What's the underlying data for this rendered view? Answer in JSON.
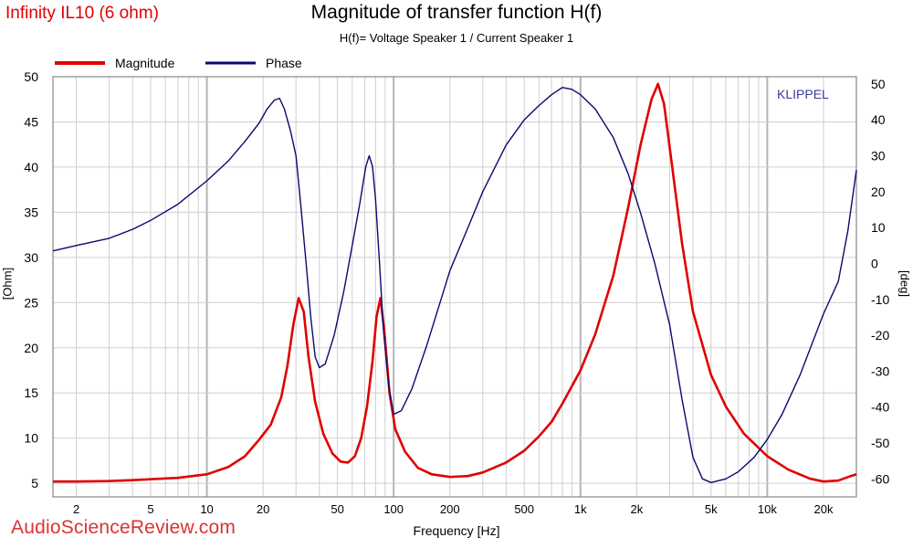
{
  "header": {
    "brand": "Infinity IL10 (6 ohm)",
    "watermark": "AudioScienceReview.com",
    "logo_text": "KLIPPEL"
  },
  "chart_data": {
    "type": "line",
    "title": "Magnitude of transfer function H(f)",
    "subtitle": "H(f)= Voltage Speaker 1 / Current Speaker 1",
    "xlabel": "Frequency [Hz]",
    "ylabel_left": "[Ohm]",
    "ylabel_right": "[deg]",
    "x_scale": "log",
    "xlim": [
      1.5,
      30000
    ],
    "ylim_left": [
      3.5,
      50
    ],
    "ylim_right": [
      -65,
      52
    ],
    "x_ticks": [
      {
        "value": 2,
        "label": "2"
      },
      {
        "value": 5,
        "label": "5"
      },
      {
        "value": 10,
        "label": "10"
      },
      {
        "value": 20,
        "label": "20"
      },
      {
        "value": 50,
        "label": "50"
      },
      {
        "value": 100,
        "label": "100"
      },
      {
        "value": 200,
        "label": "200"
      },
      {
        "value": 500,
        "label": "500"
      },
      {
        "value": 1000,
        "label": "1k"
      },
      {
        "value": 2000,
        "label": "2k"
      },
      {
        "value": 5000,
        "label": "5k"
      },
      {
        "value": 10000,
        "label": "10k"
      },
      {
        "value": 20000,
        "label": "20k"
      }
    ],
    "y_left_ticks": [
      5,
      10,
      15,
      20,
      25,
      30,
      35,
      40,
      45,
      50
    ],
    "y_right_ticks": [
      -60,
      -50,
      -40,
      -30,
      -20,
      -10,
      0,
      10,
      20,
      30,
      40,
      50
    ],
    "grid": true,
    "legend_position": "top-left",
    "series": [
      {
        "name": "Magnitude",
        "axis": "left",
        "color": "#e00000",
        "points": [
          [
            1.5,
            5.2
          ],
          [
            2,
            5.2
          ],
          [
            3,
            5.25
          ],
          [
            4,
            5.35
          ],
          [
            5,
            5.45
          ],
          [
            7,
            5.6
          ],
          [
            10,
            6.0
          ],
          [
            13,
            6.8
          ],
          [
            16,
            8.0
          ],
          [
            19,
            9.8
          ],
          [
            22,
            11.5
          ],
          [
            25,
            14.5
          ],
          [
            27,
            18.0
          ],
          [
            29,
            22.5
          ],
          [
            31,
            25.5
          ],
          [
            33,
            24.0
          ],
          [
            35,
            19.0
          ],
          [
            38,
            14.0
          ],
          [
            42,
            10.5
          ],
          [
            47,
            8.3
          ],
          [
            52,
            7.4
          ],
          [
            57,
            7.3
          ],
          [
            62,
            8.0
          ],
          [
            67,
            10.0
          ],
          [
            72,
            13.5
          ],
          [
            77,
            18.5
          ],
          [
            81,
            23.5
          ],
          [
            85,
            25.5
          ],
          [
            89,
            22.0
          ],
          [
            95,
            15.0
          ],
          [
            102,
            11.0
          ],
          [
            115,
            8.5
          ],
          [
            135,
            6.7
          ],
          [
            160,
            6.0
          ],
          [
            200,
            5.7
          ],
          [
            250,
            5.8
          ],
          [
            300,
            6.2
          ],
          [
            400,
            7.3
          ],
          [
            500,
            8.6
          ],
          [
            600,
            10.2
          ],
          [
            700,
            11.8
          ],
          [
            800,
            13.8
          ],
          [
            1000,
            17.5
          ],
          [
            1200,
            21.5
          ],
          [
            1500,
            28.0
          ],
          [
            1800,
            35.5
          ],
          [
            2100,
            42.5
          ],
          [
            2400,
            47.5
          ],
          [
            2600,
            49.2
          ],
          [
            2800,
            47.0
          ],
          [
            3100,
            40.0
          ],
          [
            3500,
            31.5
          ],
          [
            4000,
            24.0
          ],
          [
            5000,
            17.0
          ],
          [
            6000,
            13.5
          ],
          [
            7500,
            10.5
          ],
          [
            10000,
            8.0
          ],
          [
            13000,
            6.5
          ],
          [
            17000,
            5.5
          ],
          [
            20000,
            5.2
          ],
          [
            24000,
            5.3
          ],
          [
            28000,
            5.8
          ],
          [
            30000,
            6.0
          ]
        ]
      },
      {
        "name": "Phase",
        "axis": "right",
        "color": "#0a0a6e",
        "points": [
          [
            1.5,
            3.5
          ],
          [
            2,
            5
          ],
          [
            3,
            7
          ],
          [
            4,
            9.5
          ],
          [
            5,
            12
          ],
          [
            7,
            16.5
          ],
          [
            10,
            23
          ],
          [
            13,
            28.5
          ],
          [
            16,
            34
          ],
          [
            19,
            39
          ],
          [
            21,
            43
          ],
          [
            23,
            45.5
          ],
          [
            24.5,
            46
          ],
          [
            26,
            43
          ],
          [
            28,
            37
          ],
          [
            30,
            30
          ],
          [
            32,
            15
          ],
          [
            34,
            0
          ],
          [
            36,
            -15
          ],
          [
            38,
            -26
          ],
          [
            40,
            -29
          ],
          [
            43,
            -28
          ],
          [
            48,
            -20
          ],
          [
            54,
            -8
          ],
          [
            60,
            5
          ],
          [
            66,
            17
          ],
          [
            71,
            27
          ],
          [
            74,
            30
          ],
          [
            77,
            27
          ],
          [
            80,
            18
          ],
          [
            84,
            0
          ],
          [
            88,
            -18
          ],
          [
            94,
            -34
          ],
          [
            100,
            -42
          ],
          [
            110,
            -41
          ],
          [
            125,
            -35
          ],
          [
            150,
            -23
          ],
          [
            200,
            -2
          ],
          [
            250,
            10
          ],
          [
            300,
            20
          ],
          [
            400,
            33
          ],
          [
            500,
            40
          ],
          [
            600,
            44
          ],
          [
            700,
            47
          ],
          [
            800,
            49
          ],
          [
            900,
            48.5
          ],
          [
            1000,
            47
          ],
          [
            1200,
            43
          ],
          [
            1500,
            35
          ],
          [
            1800,
            25
          ],
          [
            2100,
            14
          ],
          [
            2500,
            0
          ],
          [
            3000,
            -17
          ],
          [
            3500,
            -38
          ],
          [
            4000,
            -54
          ],
          [
            4500,
            -60
          ],
          [
            5000,
            -61
          ],
          [
            6000,
            -60
          ],
          [
            7000,
            -58
          ],
          [
            8500,
            -54
          ],
          [
            10000,
            -49
          ],
          [
            12000,
            -42
          ],
          [
            15000,
            -31
          ],
          [
            20000,
            -14
          ],
          [
            24000,
            -5
          ],
          [
            27000,
            9
          ],
          [
            30000,
            26
          ]
        ]
      }
    ]
  }
}
